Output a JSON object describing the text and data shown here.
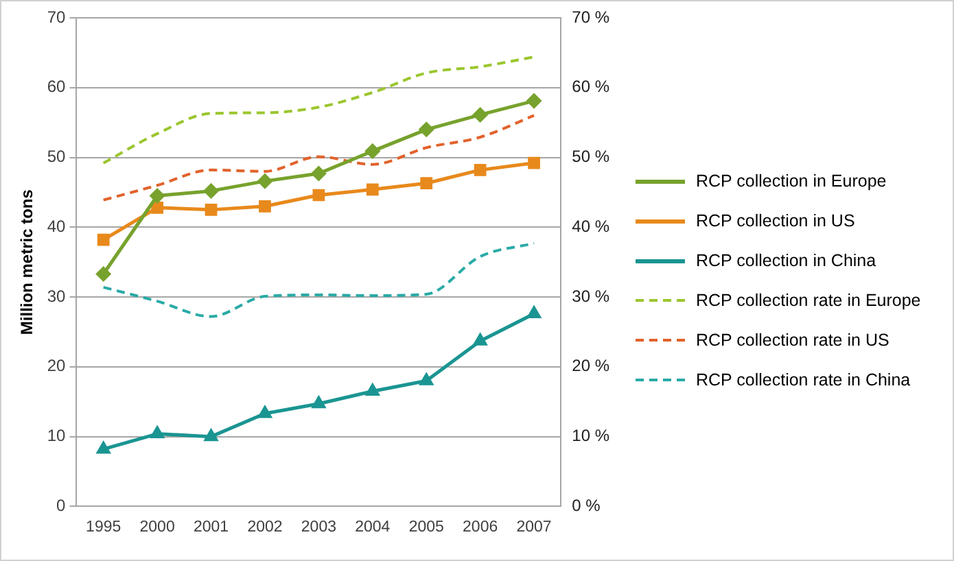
{
  "chart_data": {
    "type": "line",
    "ylabel": "Million metric tons",
    "categories": [
      "1995",
      "2000",
      "2001",
      "2002",
      "2003",
      "2004",
      "2005",
      "2006",
      "2007"
    ],
    "ylim": [
      0,
      70
    ],
    "yticks": [
      0,
      10,
      20,
      30,
      40,
      50,
      60,
      70
    ],
    "y2lim": [
      0,
      70
    ],
    "y2ticks": [
      {
        "value": 0,
        "label": "0 %"
      },
      {
        "value": 10,
        "label": "10 %"
      },
      {
        "value": 20,
        "label": "20 %"
      },
      {
        "value": 30,
        "label": "30 %"
      },
      {
        "value": 40,
        "label": "40 %"
      },
      {
        "value": 50,
        "label": "50 %"
      },
      {
        "value": 60,
        "label": "60 %"
      },
      {
        "value": 70,
        "label": "70 %"
      }
    ],
    "grid": "y",
    "legend": "right",
    "series": [
      {
        "name": "RCP collection in Europe",
        "color": "#77a22d",
        "marker": "diamond",
        "line_style": "solid",
        "values": [
          33.3,
          44.5,
          45.2,
          46.6,
          47.7,
          50.9,
          54.0,
          56.1,
          58.1
        ]
      },
      {
        "name": "RCP collection in US",
        "color": "#e8891c",
        "marker": "square",
        "line_style": "solid",
        "values": [
          38.2,
          42.8,
          42.5,
          43.0,
          44.6,
          45.4,
          46.3,
          48.2,
          49.2
        ]
      },
      {
        "name": "RCP collection in China",
        "color": "#1a9592",
        "marker": "triangle",
        "line_style": "solid",
        "values": [
          8.2,
          10.4,
          10.0,
          13.3,
          14.7,
          16.5,
          18.0,
          23.7,
          27.6
        ]
      },
      {
        "name": "RCP collection rate in Europe",
        "color": "#9bc62e",
        "marker": "none",
        "line_style": "dashed",
        "axis": "y2",
        "values": [
          49.2,
          53.4,
          56.3,
          56.4,
          57.2,
          59.3,
          62.1,
          63.0,
          64.4
        ]
      },
      {
        "name": "RCP collection rate in US",
        "color": "#e2622b",
        "marker": "none",
        "line_style": "dashed",
        "axis": "y2",
        "values": [
          43.9,
          46.0,
          48.2,
          48.0,
          50.1,
          49.0,
          51.4,
          52.9,
          56.0
        ]
      },
      {
        "name": "RCP collection rate in China",
        "color": "#2aaaa6",
        "marker": "none",
        "line_style": "dashed",
        "axis": "y2",
        "values": [
          31.4,
          29.4,
          27.2,
          30.1,
          30.3,
          30.2,
          30.4,
          35.8,
          37.7
        ]
      }
    ]
  }
}
